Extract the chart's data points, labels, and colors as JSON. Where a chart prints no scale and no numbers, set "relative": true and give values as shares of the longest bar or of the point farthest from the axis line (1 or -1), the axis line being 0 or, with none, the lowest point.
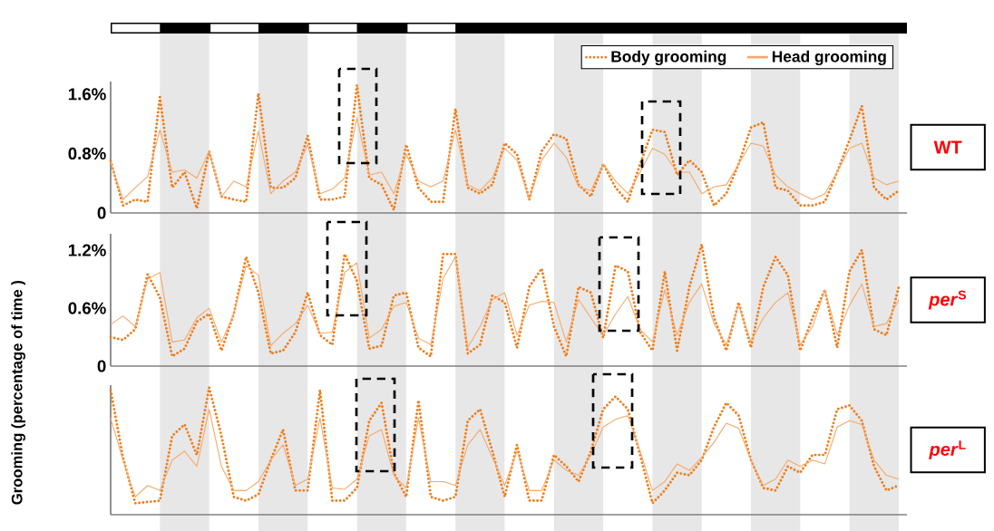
{
  "chart_data": [
    {
      "type": "line",
      "annotations": [
        "WT"
      ],
      "tick_labels": "y",
      "legend": "top right",
      "categories": [
        null,
        null,
        null,
        null,
        null,
        null,
        null,
        null,
        null,
        null,
        null,
        null,
        null,
        null,
        null,
        null,
        null,
        null,
        null,
        null,
        null,
        null,
        null,
        null,
        null,
        null,
        null,
        null,
        null,
        null,
        null,
        null,
        null,
        null,
        null,
        null,
        null,
        null,
        null,
        null,
        null,
        null,
        null,
        null,
        null,
        null,
        null,
        null,
        null,
        null,
        null,
        null,
        null,
        null,
        null,
        null,
        null,
        null,
        null,
        null,
        null,
        null,
        null,
        null,
        null
      ],
      "ylim": [
        0,
        1.77
      ],
      "yticks": [
        {
          "value": 0,
          "label": "0"
        },
        {
          "value": 0.8,
          "label": "0.8%"
        },
        {
          "value": 1.6,
          "label": "1.6%"
        }
      ],
      "series": [
        {
          "name": "Body grooming",
          "color": "#f07d1a",
          "line_style": "dotted",
          "values": [
            0.7,
            0.1,
            0.18,
            0.15,
            1.56,
            0.34,
            0.55,
            0.06,
            0.83,
            0.22,
            0.18,
            0.15,
            1.61,
            0.34,
            0.34,
            0.47,
            1.04,
            0.18,
            0.18,
            0.22,
            1.72,
            0.47,
            0.38,
            0.04,
            0.92,
            0.34,
            0.15,
            0.15,
            1.4,
            0.34,
            0.26,
            0.38,
            0.94,
            0.79,
            0.18,
            0.83,
            1.06,
            1.0,
            0.38,
            0.22,
            0.66,
            0.34,
            0.15,
            0.66,
            1.12,
            1.09,
            0.51,
            0.71,
            0.55,
            0.1,
            0.26,
            0.66,
            1.15,
            1.22,
            0.34,
            0.3,
            0.1,
            0.1,
            0.15,
            0.55,
            0.98,
            1.44,
            0.34,
            0.18,
            0.3
          ]
        },
        {
          "name": "Head grooming",
          "color": "#f5a867",
          "line_style": "solid",
          "values": [
            0.68,
            0.18,
            0.34,
            0.49,
            1.12,
            0.55,
            0.58,
            0.47,
            0.83,
            0.22,
            0.43,
            0.35,
            1.1,
            0.26,
            0.43,
            0.55,
            0.92,
            0.26,
            0.32,
            0.47,
            1.28,
            0.51,
            0.55,
            0.26,
            0.79,
            0.43,
            0.35,
            0.43,
            1.12,
            0.38,
            0.3,
            0.47,
            0.87,
            0.71,
            0.18,
            0.71,
            0.94,
            0.75,
            0.35,
            0.3,
            0.66,
            0.43,
            0.26,
            0.55,
            0.87,
            0.79,
            0.55,
            0.55,
            0.26,
            0.35,
            0.38,
            0.66,
            0.94,
            0.9,
            0.51,
            0.35,
            0.26,
            0.18,
            0.26,
            0.55,
            0.87,
            0.94,
            0.47,
            0.38,
            0.43
          ]
        }
      ]
    },
    {
      "type": "line",
      "annotations": [
        "*per*$^{S}$"
      ],
      "ylabel": "Grooming (percentage of time )",
      "tick_labels": "y",
      "categories": [
        null,
        null,
        null,
        null,
        null,
        null,
        null,
        null,
        null,
        null,
        null,
        null,
        null,
        null,
        null,
        null,
        null,
        null,
        null,
        null,
        null,
        null,
        null,
        null,
        null,
        null,
        null,
        null,
        null,
        null,
        null,
        null,
        null,
        null,
        null,
        null,
        null,
        null,
        null,
        null,
        null,
        null,
        null,
        null,
        null,
        null,
        null,
        null,
        null,
        null,
        null,
        null,
        null,
        null,
        null,
        null,
        null,
        null,
        null,
        null,
        null,
        null,
        null,
        null,
        null
      ],
      "ylim": [
        0,
        1.37
      ],
      "yticks": [
        {
          "value": 0,
          "label": "0"
        },
        {
          "value": 0.6,
          "label": "0.6%"
        },
        {
          "value": 1.2,
          "label": "1.2%"
        }
      ],
      "series": [
        {
          "color": "#f07d1a",
          "line_style": "dotted",
          "values": [
            0.3,
            0.27,
            0.38,
            0.95,
            0.71,
            0.1,
            0.18,
            0.46,
            0.54,
            0.16,
            0.54,
            1.13,
            0.76,
            0.13,
            0.16,
            0.35,
            0.76,
            0.32,
            0.22,
            1.16,
            0.88,
            0.18,
            0.21,
            0.73,
            0.76,
            0.19,
            0.1,
            1.16,
            1.16,
            0.13,
            0.22,
            0.73,
            0.66,
            0.19,
            0.82,
            1.01,
            0.41,
            0.1,
            0.82,
            0.76,
            0.29,
            1.04,
            0.98,
            0.35,
            0.16,
            0.98,
            0.16,
            0.82,
            1.26,
            0.5,
            0.16,
            0.66,
            0.19,
            0.82,
            1.13,
            0.94,
            0.16,
            0.5,
            0.79,
            0.19,
            0.98,
            1.2,
            0.38,
            0.32,
            0.82
          ]
        },
        {
          "color": "#f5a867",
          "line_style": "solid",
          "values": [
            0.43,
            0.52,
            0.41,
            0.9,
            0.97,
            0.25,
            0.27,
            0.5,
            0.6,
            0.25,
            0.54,
            1.04,
            0.94,
            0.21,
            0.34,
            0.44,
            0.63,
            0.34,
            0.35,
            0.97,
            1.07,
            0.29,
            0.38,
            0.62,
            0.66,
            0.29,
            0.22,
            0.91,
            1.13,
            0.19,
            0.41,
            0.69,
            0.76,
            0.32,
            0.63,
            0.67,
            0.66,
            0.25,
            0.69,
            0.5,
            0.32,
            0.54,
            0.72,
            0.38,
            0.25,
            0.79,
            0.32,
            0.66,
            0.85,
            0.44,
            0.22,
            0.63,
            0.25,
            0.5,
            0.66,
            0.76,
            0.22,
            0.41,
            0.79,
            0.32,
            0.63,
            0.85,
            0.41,
            0.44,
            0.69
          ]
        }
      ]
    },
    {
      "type": "line",
      "annotations": [
        "*per*$^{L}$"
      ],
      "relative": true,
      "tick_labels": false,
      "categories": [
        null,
        null,
        null,
        null,
        null,
        null,
        null,
        null,
        null,
        null,
        null,
        null,
        null,
        null,
        null,
        null,
        null,
        null,
        null,
        null,
        null,
        null,
        null,
        null,
        null,
        null,
        null,
        null,
        null,
        null,
        null,
        null,
        null,
        null,
        null,
        null,
        null,
        null,
        null,
        null,
        null,
        null,
        null,
        null,
        null,
        null,
        null,
        null,
        null,
        null,
        null,
        null,
        null,
        null,
        null,
        null,
        null,
        null,
        null,
        null,
        null,
        null,
        null,
        null,
        null
      ],
      "series": [
        {
          "color": "#f07d1a",
          "line_style": "dotted",
          "values": [
            0.98,
            0.45,
            0.09,
            0.1,
            0.11,
            0.62,
            0.71,
            0.47,
            1.0,
            0.62,
            0.14,
            0.11,
            0.16,
            0.43,
            0.67,
            0.19,
            0.19,
            0.98,
            0.11,
            0.11,
            0.21,
            0.74,
            0.88,
            0.33,
            0.14,
            0.9,
            0.14,
            0.11,
            0.14,
            0.74,
            0.83,
            0.5,
            0.14,
            0.55,
            0.11,
            0.11,
            0.47,
            0.38,
            0.26,
            0.5,
            0.83,
            0.93,
            0.83,
            0.47,
            0.09,
            0.19,
            0.33,
            0.31,
            0.43,
            0.69,
            0.88,
            0.78,
            0.43,
            0.21,
            0.19,
            0.38,
            0.33,
            0.47,
            0.47,
            0.83,
            0.86,
            0.74,
            0.38,
            0.19,
            0.23
          ]
        },
        {
          "color": "#f5a867",
          "line_style": "solid",
          "values": [
            0.76,
            0.43,
            0.14,
            0.23,
            0.19,
            0.43,
            0.5,
            0.38,
            0.83,
            0.38,
            0.19,
            0.19,
            0.26,
            0.43,
            0.55,
            0.23,
            0.28,
            0.76,
            0.21,
            0.2,
            0.28,
            0.62,
            0.67,
            0.31,
            0.21,
            0.76,
            0.26,
            0.26,
            0.23,
            0.55,
            0.67,
            0.45,
            0.23,
            0.5,
            0.19,
            0.19,
            0.43,
            0.35,
            0.31,
            0.47,
            0.69,
            0.75,
            0.78,
            0.5,
            0.19,
            0.26,
            0.4,
            0.35,
            0.45,
            0.57,
            0.72,
            0.68,
            0.43,
            0.23,
            0.28,
            0.43,
            0.38,
            0.43,
            0.4,
            0.69,
            0.74,
            0.71,
            0.43,
            0.31,
            0.28
          ]
        }
      ]
    }
  ]
}
